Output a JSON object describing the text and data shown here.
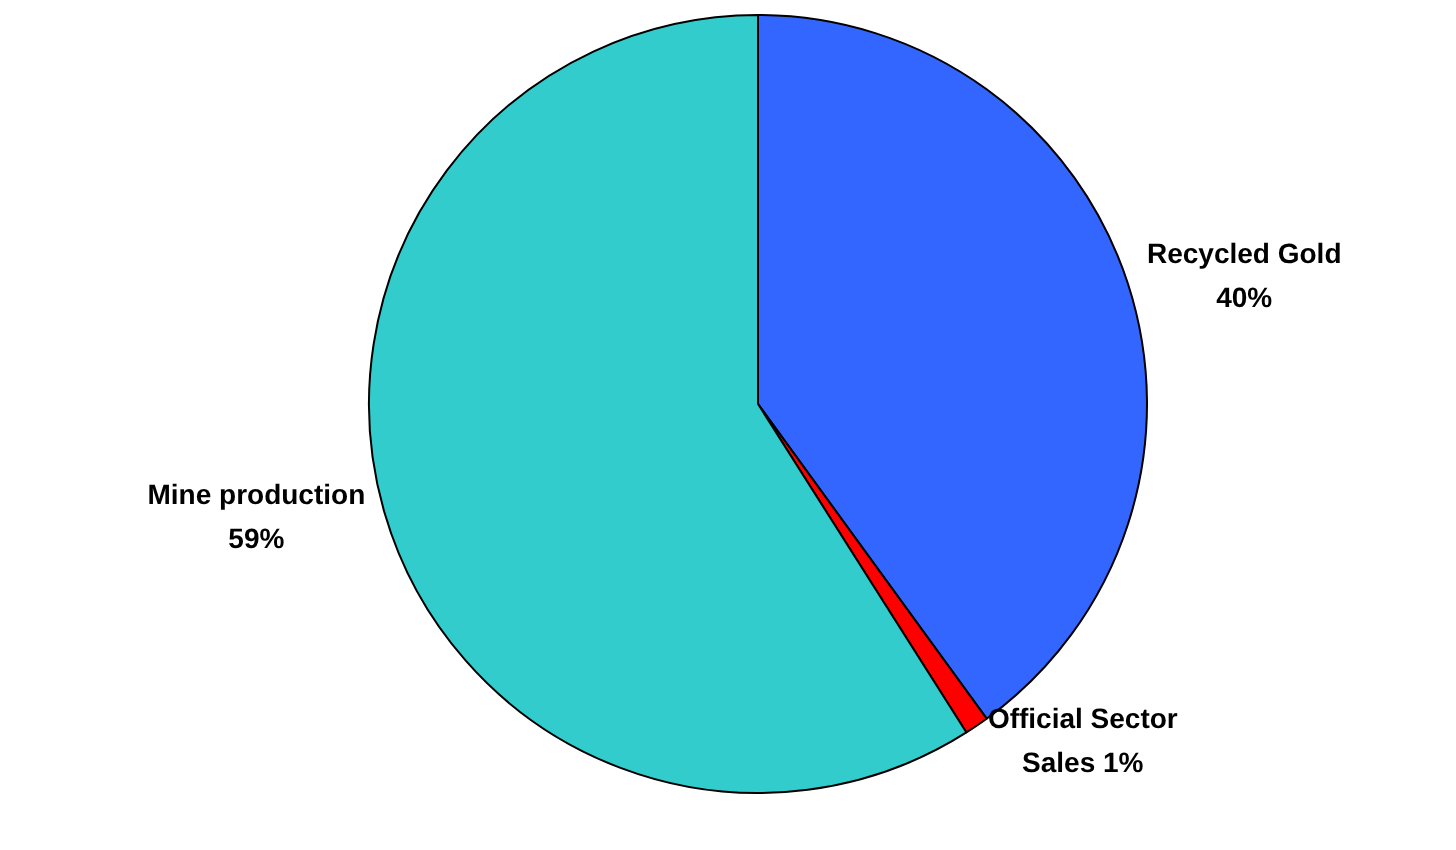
{
  "chart_data": {
    "type": "pie",
    "categories": [
      "Recycled Gold",
      "Official Sector Sales",
      "Mine production"
    ],
    "values": [
      40,
      1,
      59
    ],
    "value_labels": [
      "40%",
      "1%",
      "59%"
    ],
    "colors": [
      "#3366ff",
      "#ff0000",
      "#33cccc"
    ],
    "legend": false
  }
}
